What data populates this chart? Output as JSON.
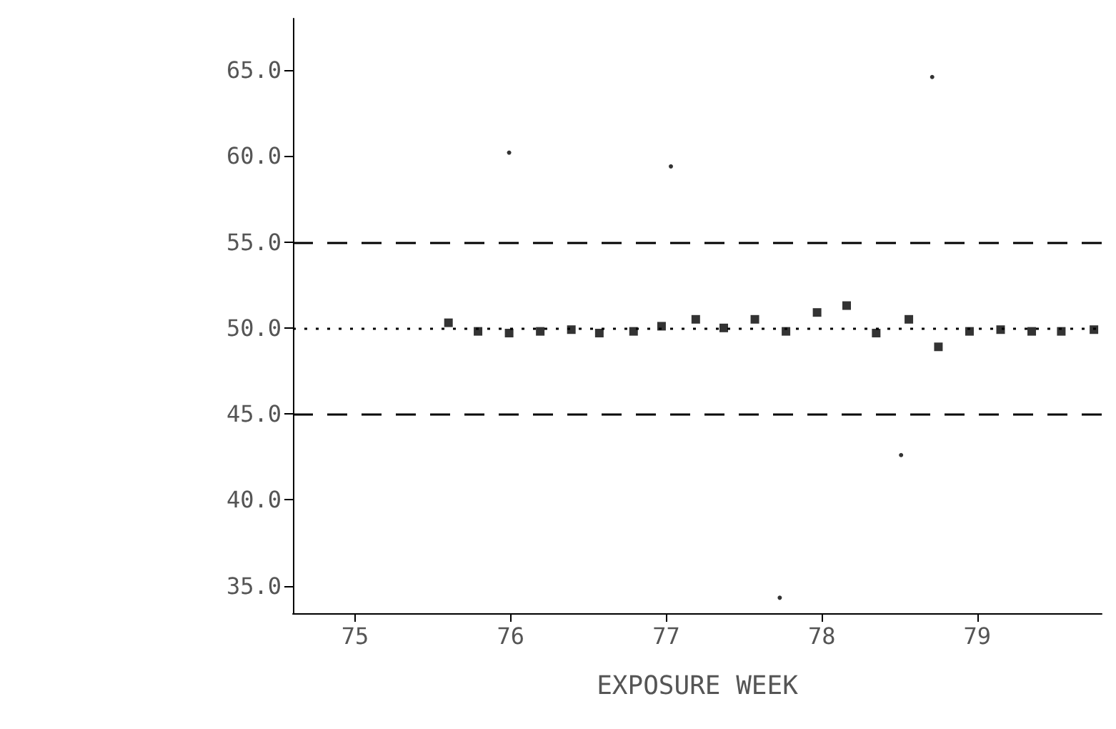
{
  "chart_data": {
    "type": "scatter",
    "xlabel": "EXPOSURE WEEK",
    "xlim": [
      74.6,
      79.8
    ],
    "xticks": [
      75,
      76,
      77,
      78,
      79
    ],
    "ylim": [
      33.4,
      68
    ],
    "yticks": [
      {
        "value": 35,
        "label": "35.0"
      },
      {
        "value": 40,
        "label": "40.0"
      },
      {
        "value": 45,
        "label": "45.0"
      },
      {
        "value": 50,
        "label": "50.0"
      },
      {
        "value": 55,
        "label": "55.0"
      },
      {
        "value": 60,
        "label": "60.0"
      },
      {
        "value": 65,
        "label": "65.0"
      }
    ],
    "grid": false,
    "series": [
      {
        "color": "#000000",
        "marker": "square",
        "x": [
          75.6,
          75.79,
          75.99,
          76.19,
          76.39,
          76.57,
          76.79,
          76.97,
          77.19,
          77.37,
          77.57,
          77.77,
          77.97,
          78.16,
          78.35,
          78.56,
          78.75,
          78.95,
          79.15,
          79.35,
          79.54,
          79.75
        ],
        "values": [
          50.3,
          49.8,
          49.7,
          49.8,
          49.9,
          49.7,
          49.8,
          50.1,
          50.5,
          50.0,
          50.5,
          49.8,
          50.9,
          51.3,
          49.7,
          50.5,
          48.9,
          49.8,
          49.9,
          49.8,
          49.8,
          49.9
        ]
      },
      {
        "color": "#000000",
        "marker": "circle",
        "x": [
          75.99,
          77.03,
          78.71,
          78.51,
          77.73
        ],
        "values": [
          60.2,
          59.4,
          64.6,
          42.6,
          34.3
        ]
      }
    ],
    "ref_lines": [
      {
        "axis": "y",
        "value": 55,
        "line_style": "dashed",
        "color": "#000000"
      },
      {
        "axis": "y",
        "value": 50,
        "line_style": "dotted",
        "color": "#000000"
      },
      {
        "axis": "y",
        "value": 45,
        "line_style": "dashed",
        "color": "#000000"
      }
    ]
  }
}
